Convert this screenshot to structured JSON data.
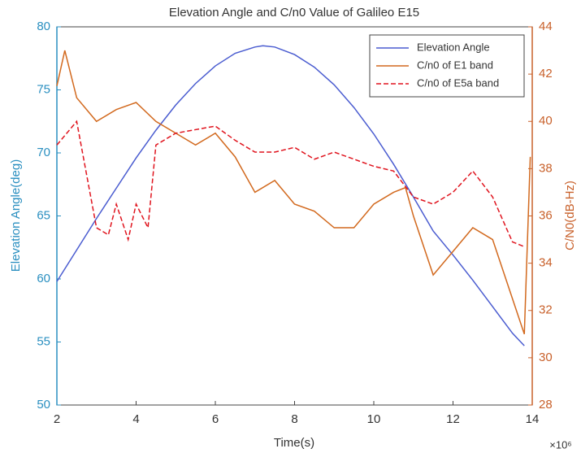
{
  "chart_data": {
    "type": "line",
    "title": "Elevation Angle and C/n0 Value of Galileo E15",
    "xlabel": "Time(s)",
    "x_exponent": "×10⁶",
    "ylabel": "Elevation Angle(deg)",
    "y2label": "C/N0(dB-Hz)",
    "xlim": [
      2,
      14
    ],
    "xticks": [
      2,
      4,
      6,
      8,
      10,
      12,
      14
    ],
    "ylim": [
      50,
      80
    ],
    "yticks": [
      50,
      55,
      60,
      65,
      70,
      75,
      80
    ],
    "y2lim": [
      28,
      44
    ],
    "y2ticks": [
      28,
      30,
      32,
      34,
      36,
      38,
      40,
      42,
      44
    ],
    "ycolor": "#2a8fc0",
    "y2color": "#c8602a",
    "legend": "top-right",
    "series": [
      {
        "name": "Elevation Angle",
        "color": "#4a5cd0",
        "axis": "y",
        "linestyle": "solid",
        "x": [
          2,
          2.5,
          3,
          3.5,
          4,
          4.5,
          5,
          5.5,
          6,
          6.5,
          7,
          7.2,
          7.5,
          8,
          8.5,
          9,
          9.5,
          10,
          10.5,
          11,
          11.5,
          12,
          12.5,
          13,
          13.5,
          13.8
        ],
        "values": [
          59.8,
          62.3,
          64.8,
          67.2,
          69.6,
          71.8,
          73.8,
          75.5,
          76.9,
          77.9,
          78.4,
          78.5,
          78.4,
          77.8,
          76.8,
          75.4,
          73.6,
          71.5,
          69.1,
          66.5,
          63.8,
          61.9,
          59.9,
          57.8,
          55.7,
          54.7
        ]
      },
      {
        "name": "C/n0 of E1 band",
        "color": "#d2691e",
        "axis": "y2",
        "linestyle": "solid",
        "x": [
          2,
          2.2,
          2.5,
          3,
          3.5,
          4,
          4.5,
          5,
          5.5,
          6,
          6.5,
          7,
          7.5,
          8,
          8.5,
          9,
          9.5,
          10,
          10.5,
          10.8,
          11,
          11.3,
          11.5,
          12,
          12.5,
          13,
          13.3,
          13.6,
          13.8,
          13.95
        ],
        "values": [
          41.5,
          43,
          41,
          40,
          40.5,
          40.8,
          40,
          39.5,
          39,
          39.5,
          38.5,
          37,
          37.5,
          36.5,
          36.2,
          35.5,
          35.5,
          36.5,
          37,
          37.2,
          36,
          34.5,
          33.5,
          34.5,
          35.5,
          35,
          33.5,
          32,
          31,
          38.5
        ]
      },
      {
        "name": "C/n0 of E5a band",
        "color": "#e0141e",
        "axis": "y2",
        "linestyle": "dashed",
        "x": [
          2,
          2.5,
          3,
          3.3,
          3.5,
          3.8,
          4,
          4.3,
          4.5,
          5,
          6,
          6.5,
          7,
          7.5,
          8,
          8.5,
          9,
          9.5,
          10,
          10.5,
          11,
          11.5,
          12,
          12.5,
          13,
          13.5,
          13.8
        ],
        "values": [
          39,
          40,
          35.5,
          35.2,
          36.5,
          35,
          36.5,
          35.5,
          39,
          39.5,
          39.8,
          39.2,
          38.7,
          38.7,
          38.9,
          38.4,
          38.7,
          38.4,
          38.1,
          37.9,
          36.8,
          36.5,
          37,
          37.9,
          36.8,
          34.9,
          34.7
        ]
      }
    ]
  }
}
